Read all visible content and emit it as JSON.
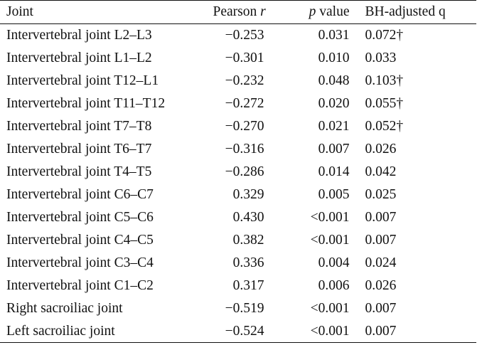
{
  "table": {
    "headers": {
      "joint": "Joint",
      "pearson_prefix": "Pearson ",
      "pearson_symbol": "r",
      "p_symbol": "p",
      "p_suffix": " value",
      "bh": "BH-adjusted q"
    },
    "rows": [
      {
        "joint": "Intervertebral joint L2–L3",
        "r": "−0.253",
        "p": "0.031",
        "q": "0.072†"
      },
      {
        "joint": "Intervertebral joint L1–L2",
        "r": "−0.301",
        "p": "0.010",
        "q": "0.033"
      },
      {
        "joint": "Intervertebral joint T12–L1",
        "r": "−0.232",
        "p": "0.048",
        "q": "0.103†"
      },
      {
        "joint": "Intervertebral joint T11–T12",
        "r": "−0.272",
        "p": "0.020",
        "q": "0.055†"
      },
      {
        "joint": "Intervertebral joint T7–T8",
        "r": "−0.270",
        "p": "0.021",
        "q": "0.052†"
      },
      {
        "joint": "Intervertebral joint T6–T7",
        "r": "−0.316",
        "p": "0.007",
        "q": "0.026"
      },
      {
        "joint": "Intervertebral joint T4–T5",
        "r": "−0.286",
        "p": "0.014",
        "q": "0.042"
      },
      {
        "joint": "Intervertebral joint C6–C7",
        "r": "0.329",
        "p": "0.005",
        "q": "0.025"
      },
      {
        "joint": "Intervertebral joint C5–C6",
        "r": "0.430",
        "p": "<0.001",
        "q": "0.007"
      },
      {
        "joint": "Intervertebral joint C4–C5",
        "r": "0.382",
        "p": "<0.001",
        "q": "0.007"
      },
      {
        "joint": "Intervertebral joint C3–C4",
        "r": "0.336",
        "p": "0.004",
        "q": "0.024"
      },
      {
        "joint": "Intervertebral joint C1–C2",
        "r": "0.317",
        "p": "0.006",
        "q": "0.026"
      },
      {
        "joint": "Right sacroiliac joint",
        "r": "−0.519",
        "p": "<0.001",
        "q": "0.007"
      },
      {
        "joint": "Left sacroiliac joint",
        "r": "−0.524",
        "p": "<0.001",
        "q": "0.007"
      }
    ]
  }
}
